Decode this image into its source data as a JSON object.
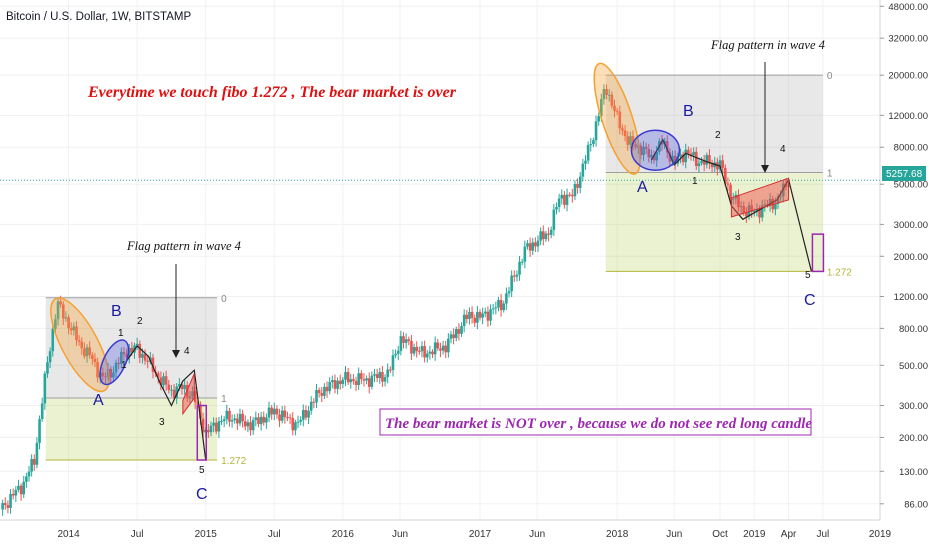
{
  "header": {
    "symbol_title": "Bitcoin / U.S. Dollar, 1W, BITSTAMP"
  },
  "annotations": {
    "headline": "Everytime we touch fibo 1.272 , The bear market is over",
    "flag_left": "Flag pattern in wave 4",
    "flag_right": "Flag pattern in wave 4",
    "conclusion": "The bear market is NOT over , because we do not see red long candle"
  },
  "fib_labels": {
    "level0": "0",
    "level1": "1",
    "level1272": "1.272"
  },
  "wave_labels": {
    "A": "A",
    "B": "B",
    "C": "C",
    "w1": "1",
    "w2": "2",
    "w3": "3",
    "w4": "4",
    "w5": "5"
  },
  "price_tag": "5257.68",
  "colors": {
    "candle_up": "#26a69a",
    "candle_down": "#ef5350",
    "headline_red": "#e01010",
    "wave_blue": "#1a1aa0",
    "fib_gray": "#9e9e9e",
    "fib_green": "#b5b53a",
    "purple": "#9c27b0",
    "orange": "#f5a033",
    "price_tag_bg": "#26a69a"
  },
  "chart_data": {
    "type": "candlestick",
    "title": "Bitcoin / U.S. Dollar, 1W, BITSTAMP",
    "y_scale": "log",
    "ylim": [
      70,
      52000
    ],
    "y_ticks": [
      48000,
      32000,
      20000,
      12000,
      8000,
      5000,
      3000,
      2000,
      1200,
      800,
      500,
      300,
      200,
      130,
      86
    ],
    "y_tick_labels": [
      "48000.00",
      "32000.00",
      "20000.00",
      "12000.00",
      "8000.00",
      "5000.00",
      "3000.00",
      "2000.00",
      "1200.00",
      "800.00",
      "500.00",
      "300.00",
      "200.00",
      "130.00",
      "86.00"
    ],
    "x_range": [
      "2013-07",
      "2019-12"
    ],
    "x_ticks": [
      {
        "date": "2014-01",
        "label": "2014"
      },
      {
        "date": "2014-07",
        "label": "Jul"
      },
      {
        "date": "2015-01",
        "label": "2015"
      },
      {
        "date": "2015-07",
        "label": "Jul"
      },
      {
        "date": "2016-01",
        "label": "2016"
      },
      {
        "date": "2016-06",
        "label": "Jun"
      },
      {
        "date": "2017-01",
        "label": "2017"
      },
      {
        "date": "2017-06",
        "label": "Jun"
      },
      {
        "date": "2018-01",
        "label": "2018"
      },
      {
        "date": "2018-06",
        "label": "Jun"
      },
      {
        "date": "2018-10",
        "label": "Oct"
      },
      {
        "date": "2019-01",
        "label": "2019"
      },
      {
        "date": "2019-04",
        "label": "Apr"
      },
      {
        "date": "2019-07",
        "label": "Jul"
      },
      {
        "date": "2019-12",
        "label": "2019"
      }
    ],
    "price_path": [
      [
        "2013-07",
        80
      ],
      [
        "2013-09",
        110
      ],
      [
        "2013-10",
        150
      ],
      [
        "2013-11",
        450
      ],
      [
        "2013-12",
        1100
      ],
      [
        "2014-01",
        850
      ],
      [
        "2014-02",
        650
      ],
      [
        "2014-03",
        550
      ],
      [
        "2014-04",
        420
      ],
      [
        "2014-05",
        480
      ],
      [
        "2014-06",
        600
      ],
      [
        "2014-07",
        620
      ],
      [
        "2014-08",
        520
      ],
      [
        "2014-09",
        420
      ],
      [
        "2014-10",
        360
      ],
      [
        "2014-11",
        380
      ],
      [
        "2014-12",
        330
      ],
      [
        "2015-01",
        210
      ],
      [
        "2015-02",
        240
      ],
      [
        "2015-03",
        260
      ],
      [
        "2015-05",
        235
      ],
      [
        "2015-07",
        280
      ],
      [
        "2015-09",
        235
      ],
      [
        "2015-11",
        360
      ],
      [
        "2016-01",
        420
      ],
      [
        "2016-03",
        415
      ],
      [
        "2016-05",
        450
      ],
      [
        "2016-06",
        700
      ],
      [
        "2016-08",
        580
      ],
      [
        "2016-10",
        640
      ],
      [
        "2016-12",
        950
      ],
      [
        "2017-01",
        920
      ],
      [
        "2017-03",
        1100
      ],
      [
        "2017-05",
        2200
      ],
      [
        "2017-07",
        2700
      ],
      [
        "2017-08",
        4300
      ],
      [
        "2017-09",
        4200
      ],
      [
        "2017-10",
        6200
      ],
      [
        "2017-11",
        9800
      ],
      [
        "2017-12",
        17500
      ],
      [
        "2018-01",
        11500
      ],
      [
        "2018-02",
        8500
      ],
      [
        "2018-03",
        8000
      ],
      [
        "2018-04",
        7000
      ],
      [
        "2018-05",
        8600
      ],
      [
        "2018-06",
        6500
      ],
      [
        "2018-07",
        7600
      ],
      [
        "2018-08",
        6700
      ],
      [
        "2018-09",
        6600
      ],
      [
        "2018-10",
        6400
      ],
      [
        "2018-11",
        4300
      ],
      [
        "2018-12",
        3600
      ],
      [
        "2019-01",
        3500
      ],
      [
        "2019-02",
        3800
      ],
      [
        "2019-03",
        4050
      ],
      [
        "2019-04",
        5257.68
      ]
    ],
    "fib_levels": [
      {
        "label": "0",
        "value": 1180,
        "segment": "2013-11 to 2015-02"
      },
      {
        "label": "1",
        "value": 330,
        "segment": "2013-11 to 2015-02"
      },
      {
        "label": "1.272",
        "value": 150,
        "segment": "2013-11 to 2015-02"
      },
      {
        "label": "0",
        "value": 20000,
        "segment": "2017-12 to 2019-07"
      },
      {
        "label": "1",
        "value": 5800,
        "segment": "2017-12 to 2019-07"
      },
      {
        "label": "1.272",
        "value": 1650,
        "segment": "2017-12 to 2019-07"
      }
    ],
    "last_price": 5257.68
  }
}
